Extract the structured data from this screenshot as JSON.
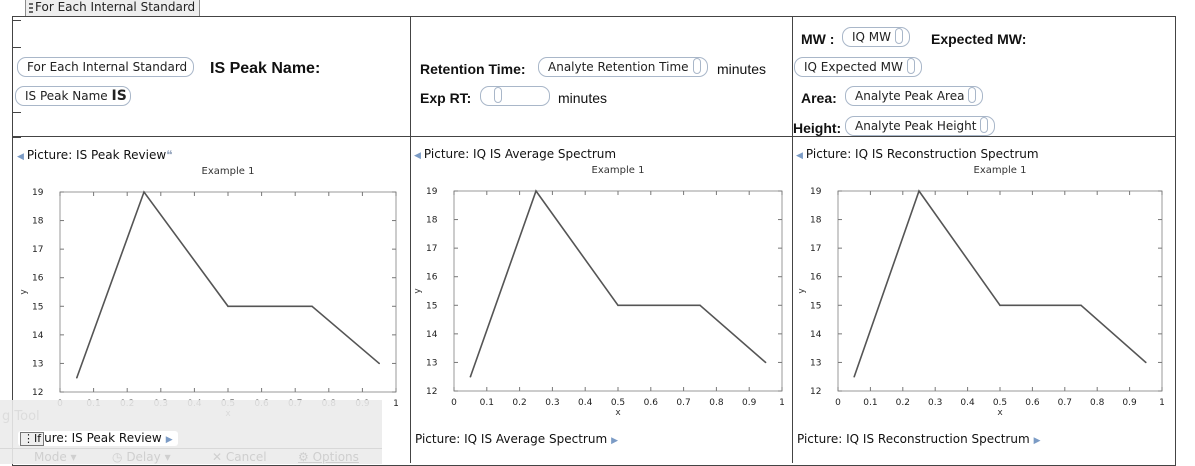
{
  "top_tab": {
    "label": "For Each Internal Standard"
  },
  "header": {
    "cell1": {
      "loop_pill": "For Each Internal Standard",
      "is_peak_name_label": "IS Peak Name:",
      "is_peak_name_pill": "IS Peak Name",
      "is_value": "IS"
    },
    "cell2": {
      "retention_label": "Retention Time:",
      "retention_pill": "Analyte Retention Time",
      "retention_unit": "minutes",
      "exp_rt_label": "Exp RT:",
      "exp_rt_pill": "",
      "exp_rt_unit": "minutes"
    },
    "cell3": {
      "mw_label": "MW :",
      "mw_pill": "IQ MW",
      "expected_mw_label": "Expected MW:",
      "expected_mw_pill": "IQ Expected MW",
      "area_label": "Area:",
      "area_pill": "Analyte Peak Area",
      "height_label": "Height:",
      "height_pill": "Analyte Peak Height"
    }
  },
  "pictures": [
    {
      "open_label": "Picture: IS Peak Review",
      "close_label": "ure: IS Peak Review"
    },
    {
      "open_label": "Picture: IQ IS Average Spectrum",
      "close_label": "Picture: IQ IS Average Spectrum"
    },
    {
      "open_label": "Picture: IQ IS Reconstruction Spectrum",
      "close_label": "Picture: IQ IS Reconstruction Spectrum"
    }
  ],
  "chart_data": [
    {
      "type": "line",
      "title": "Example 1",
      "xlabel": "x",
      "ylabel": "y",
      "x": [
        0.05,
        0.25,
        0.5,
        0.75,
        0.95
      ],
      "y": [
        12.5,
        19,
        15,
        15,
        13
      ],
      "xlim": [
        0,
        1
      ],
      "ylim": [
        12,
        19
      ],
      "xticks": [
        "0",
        "0.1",
        "0.2",
        "0.3",
        "0.4",
        "0.5",
        "0.6",
        "0.7",
        "0.8",
        "0.9",
        "1"
      ],
      "yticks": [
        "12",
        "13",
        "14",
        "15",
        "16",
        "17",
        "18",
        "19"
      ],
      "grid": false
    },
    {
      "type": "line",
      "title": "Example 1",
      "xlabel": "x",
      "ylabel": "y",
      "x": [
        0.05,
        0.25,
        0.5,
        0.75,
        0.95
      ],
      "y": [
        12.5,
        19,
        15,
        15,
        13
      ],
      "xlim": [
        0,
        1
      ],
      "ylim": [
        12,
        19
      ],
      "xticks": [
        "0",
        "0.1",
        "0.2",
        "0.3",
        "0.4",
        "0.5",
        "0.6",
        "0.7",
        "0.8",
        "0.9",
        "1"
      ],
      "yticks": [
        "12",
        "13",
        "14",
        "15",
        "16",
        "17",
        "18",
        "19"
      ],
      "grid": false
    },
    {
      "type": "line",
      "title": "Example 1",
      "xlabel": "x",
      "ylabel": "y",
      "x": [
        0.05,
        0.25,
        0.5,
        0.75,
        0.95
      ],
      "y": [
        12.5,
        19,
        15,
        15,
        13
      ],
      "xlim": [
        0,
        1
      ],
      "ylim": [
        12,
        19
      ],
      "xticks": [
        "0",
        "0.1",
        "0.2",
        "0.3",
        "0.4",
        "0.5",
        "0.6",
        "0.7",
        "0.8",
        "0.9",
        "1"
      ],
      "yticks": [
        "12",
        "13",
        "14",
        "15",
        "16",
        "17",
        "18",
        "19"
      ],
      "grid": false
    }
  ],
  "floating_toolbar": {
    "title": "g Tool",
    "if_label": "If",
    "mode_label": "Mode",
    "delay_label": "Delay",
    "cancel_label": "Cancel",
    "options_label": "Options"
  }
}
